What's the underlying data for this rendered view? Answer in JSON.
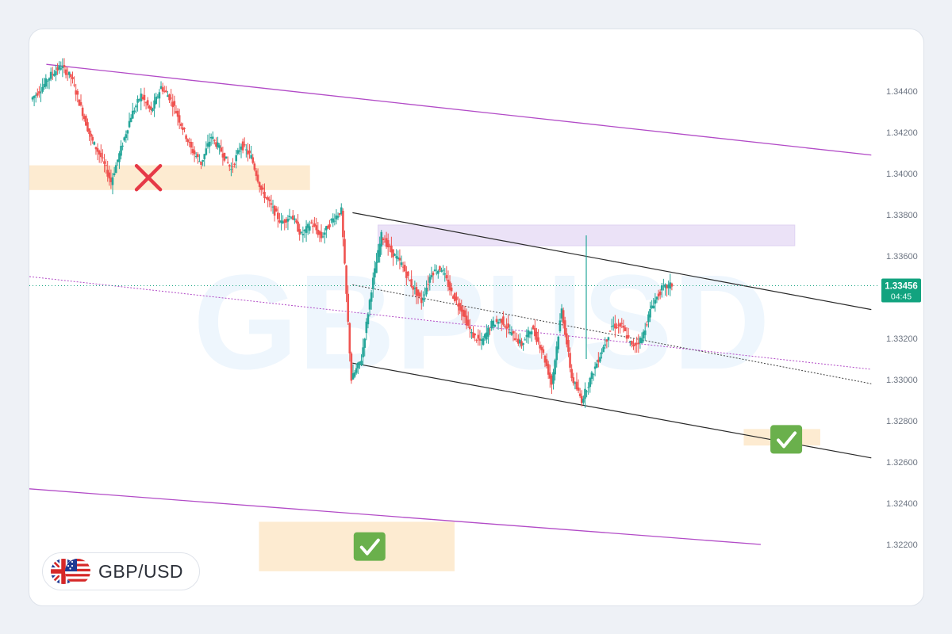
{
  "chart_data": {
    "type": "candlestick",
    "symbol": "GBP/USD",
    "watermark": "GBPUSD",
    "y_axis": {
      "min": 1.321,
      "max": 1.3456,
      "ticks": [
        "1.34400",
        "1.34200",
        "1.34000",
        "1.33800",
        "1.33600",
        "1.33400",
        "1.33200",
        "1.33000",
        "1.32800",
        "1.32600",
        "1.32400",
        "1.32200"
      ],
      "tick_values": [
        1.344,
        1.342,
        1.34,
        1.338,
        1.336,
        1.334,
        1.332,
        1.33,
        1.328,
        1.326,
        1.324,
        1.322
      ],
      "gridlines": false
    },
    "current_price": {
      "value": 1.33456,
      "label": "1.33456",
      "countdown": "04:45",
      "color": "#12a37f"
    },
    "colors": {
      "up": "#26a69a",
      "down": "#ef5350",
      "channel_outer": "#b24bc7",
      "channel_inner": "#2a2a2a",
      "zone_orange": "#fde7c9",
      "zone_purple": "#e7dcf6",
      "check": "#6ab04c",
      "cross": "#e63946"
    },
    "price_path": [
      1.3436,
      1.3441,
      1.3448,
      1.3452,
      1.3447,
      1.3432,
      1.3417,
      1.3408,
      1.3396,
      1.3412,
      1.3428,
      1.3438,
      1.343,
      1.3442,
      1.3436,
      1.3424,
      1.3412,
      1.3405,
      1.3418,
      1.3411,
      1.3402,
      1.3414,
      1.3408,
      1.3392,
      1.3384,
      1.3376,
      1.338,
      1.337,
      1.3376,
      1.3369,
      1.3377,
      1.3382,
      1.33,
      1.331,
      1.3344,
      1.337,
      1.3362,
      1.3356,
      1.3346,
      1.3338,
      1.3352,
      1.3354,
      1.3342,
      1.3334,
      1.3322,
      1.3318,
      1.3327,
      1.3329,
      1.3322,
      1.3317,
      1.3325,
      1.3315,
      1.3298,
      1.3334,
      1.3301,
      1.329,
      1.3302,
      1.3314,
      1.3326,
      1.3326,
      1.3316,
      1.332,
      1.3336,
      1.3344,
      1.3346
    ],
    "channels": [
      {
        "style": "outer",
        "points": [
          [
            0.02,
            1.3453
          ],
          [
            0.99,
            1.3409
          ]
        ]
      },
      {
        "style": "outer",
        "points": [
          [
            0.0,
            1.3247
          ],
          [
            0.86,
            1.322
          ]
        ]
      },
      {
        "style": "inner",
        "points": [
          [
            0.38,
            1.3381
          ],
          [
            0.99,
            1.3334
          ]
        ]
      },
      {
        "style": "inner",
        "points": [
          [
            0.38,
            1.3308
          ],
          [
            0.99,
            1.3262
          ]
        ]
      },
      {
        "style": "inner-dotted",
        "points": [
          [
            0.38,
            1.3346
          ],
          [
            0.99,
            1.3298
          ]
        ]
      },
      {
        "style": "outer-dotted",
        "points": [
          [
            0.0,
            1.335
          ],
          [
            0.99,
            1.3305
          ]
        ]
      }
    ],
    "zones": [
      {
        "style": "orange",
        "range": [
          0.0,
          0.33
        ],
        "prices": [
          1.3404,
          1.3392
        ]
      },
      {
        "style": "purple",
        "range": [
          0.41,
          0.9
        ],
        "prices": [
          1.3375,
          1.3365
        ]
      },
      {
        "style": "orange",
        "range": [
          0.84,
          0.93
        ],
        "prices": [
          1.3276,
          1.3268
        ]
      },
      {
        "style": "orange",
        "range": [
          0.27,
          0.5
        ],
        "prices": [
          1.3231,
          1.3207
        ]
      }
    ],
    "markers": [
      {
        "kind": "cross",
        "at": [
          0.14,
          1.3398
        ]
      },
      {
        "kind": "check",
        "at": [
          0.89,
          1.3271
        ]
      },
      {
        "kind": "check",
        "at": [
          0.4,
          1.3219
        ]
      }
    ]
  },
  "pair_label": "GBP/USD"
}
